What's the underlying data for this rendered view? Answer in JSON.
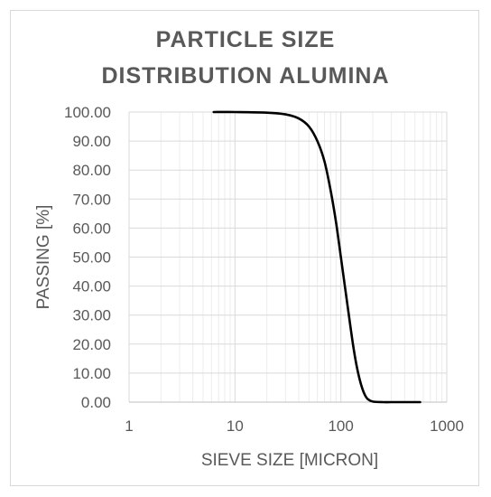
{
  "chart_data": {
    "type": "line",
    "title_lines": [
      "PARTICLE SIZE",
      "DISTRIBUTION ALUMINA"
    ],
    "xlabel": "SIEVE SIZE [MICRON]",
    "ylabel": "PASSING [%]",
    "x_scale": "log",
    "xlim": [
      1,
      1000
    ],
    "ylim": [
      0,
      100
    ],
    "x_ticks": [
      1,
      10,
      100,
      1000
    ],
    "x_tick_labels": [
      "1",
      "10",
      "100",
      "1000"
    ],
    "y_ticks": [
      0,
      10,
      20,
      30,
      40,
      50,
      60,
      70,
      80,
      90,
      100
    ],
    "y_tick_labels": [
      "0.00",
      "10.00",
      "20.00",
      "30.00",
      "40.00",
      "50.00",
      "60.00",
      "70.00",
      "80.00",
      "90.00",
      "100.00"
    ],
    "grid": "major and minor (log) gridlines",
    "legend": "none",
    "line_color": "#000000",
    "series": [
      {
        "x": [
          6.3,
          10,
          20,
          30,
          40,
          50,
          60,
          70,
          80,
          90,
          100,
          110,
          120,
          130,
          140,
          150,
          160,
          170,
          180,
          200,
          250,
          300,
          400,
          500,
          560
        ],
        "values": [
          100,
          100,
          99.8,
          99.2,
          97.8,
          95,
          90,
          83,
          73,
          62,
          50,
          39,
          29,
          20,
          13,
          8,
          4.5,
          2.2,
          1,
          0.2,
          0,
          0,
          0,
          0,
          0
        ]
      }
    ]
  }
}
